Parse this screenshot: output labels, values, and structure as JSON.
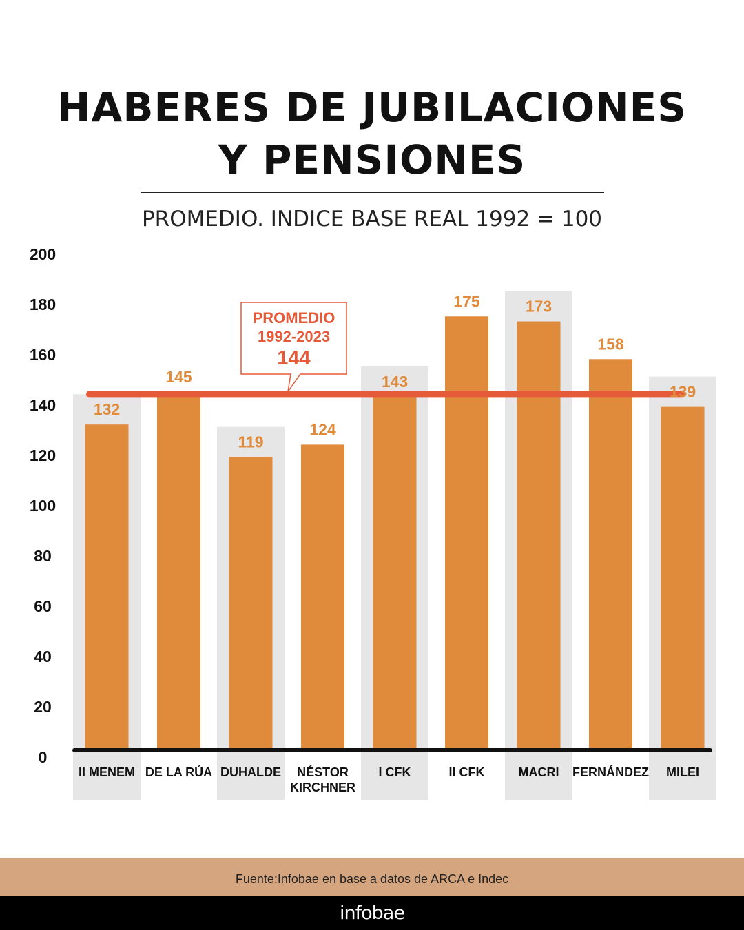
{
  "title_line1": "HABERES DE JUBILACIONES",
  "title_line2": "Y PENSIONES",
  "subtitle": "PROMEDIO. INDICE BASE REAL 1992 = 100",
  "source": "Fuente:Infobae en base a datos de ARCA e Indec",
  "brand": "infobae",
  "colors": {
    "bar": "#e08a3c",
    "value_label": "#e08a3c",
    "average_line": "#e55a39",
    "callout_text": "#e55a39",
    "shade": "#e6e6e6",
    "baseline": "#111111"
  },
  "chart_data": {
    "type": "bar",
    "categories": [
      [
        "II MENEM"
      ],
      [
        "DE LA RÚA"
      ],
      [
        "DUHALDE"
      ],
      [
        "NÉSTOR",
        "KIRCHNER"
      ],
      [
        "I CFK"
      ],
      [
        "II CFK"
      ],
      [
        "MACRI"
      ],
      [
        "FERNÁNDEZ"
      ],
      [
        "MILEI"
      ]
    ],
    "values": [
      132,
      145,
      119,
      124,
      143,
      175,
      173,
      158,
      139
    ],
    "shaded_columns": [
      0,
      2,
      4,
      6,
      8
    ],
    "ylim": [
      0,
      200
    ],
    "y_ticks": [
      0,
      20,
      40,
      60,
      80,
      100,
      120,
      140,
      160,
      180,
      200
    ],
    "average": {
      "value": 144,
      "label_lines": [
        "PROMEDIO",
        "1992-2023"
      ],
      "value_label": "144"
    }
  }
}
